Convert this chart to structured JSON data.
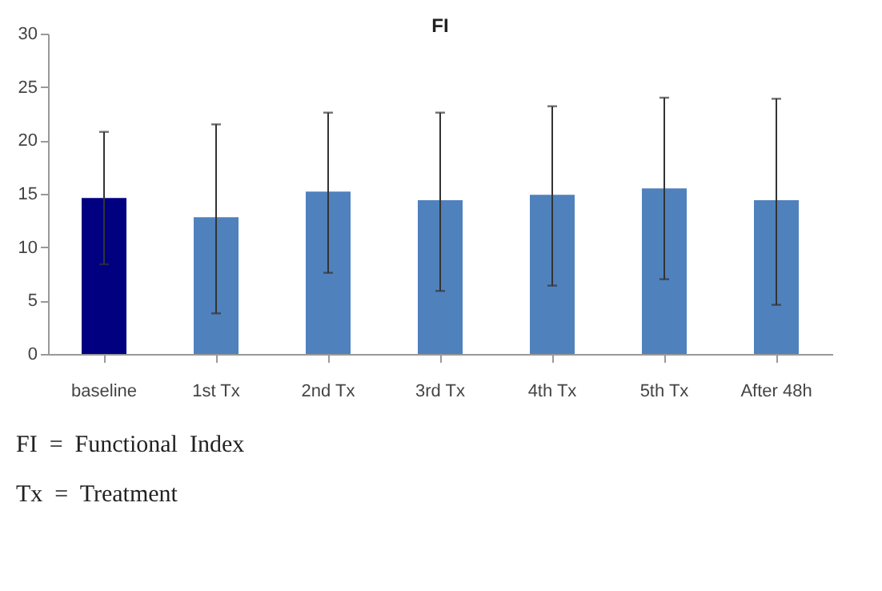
{
  "chart_data": {
    "type": "bar",
    "title": "FI",
    "categories": [
      "baseline",
      "1st Tx",
      "2nd Tx",
      "3rd Tx",
      "4th Tx",
      "5th Tx",
      "After 48h"
    ],
    "values": [
      14.6,
      12.8,
      15.2,
      14.4,
      14.9,
      15.5,
      14.4
    ],
    "colors": [
      "#000080",
      "#4f81bd",
      "#4f81bd",
      "#4f81bd",
      "#4f81bd",
      "#4f81bd",
      "#4f81bd"
    ],
    "errors": [
      [
        8.4,
        20.8
      ],
      [
        3.8,
        21.5
      ],
      [
        7.6,
        22.6
      ],
      [
        5.9,
        22.6
      ],
      [
        6.4,
        23.2
      ],
      [
        7.0,
        24.0
      ],
      [
        4.6,
        23.9
      ]
    ],
    "ylim": [
      0,
      30
    ],
    "yticks": [
      0,
      5,
      10,
      15,
      20,
      25,
      30
    ],
    "annotations": [
      "FI  =  Functional  Index",
      "Tx  =  Treatment"
    ]
  }
}
